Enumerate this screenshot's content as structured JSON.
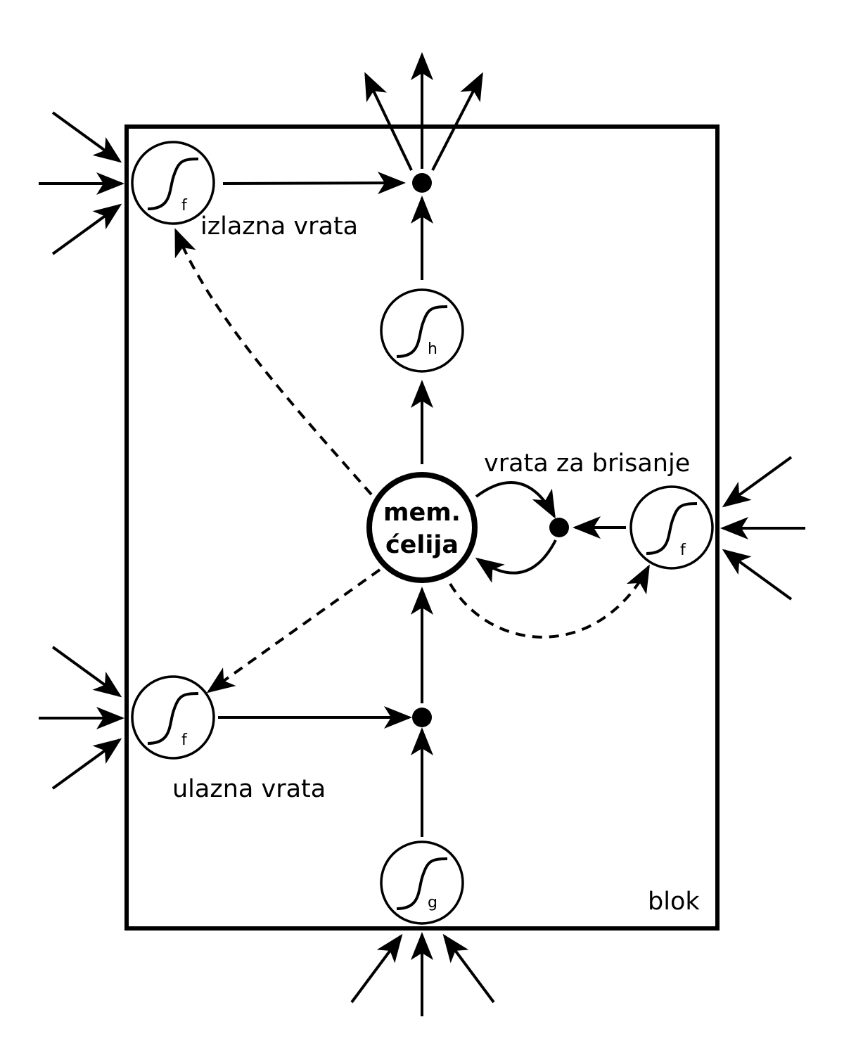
{
  "labels": {
    "output_gate": "izlazna vrata",
    "forget_gate": "vrata za brisanje",
    "input_gate": "ulazna vrata",
    "block": "blok",
    "cell_line1": "mem.",
    "cell_line2": "ćelija"
  },
  "units": {
    "output_gate_sub": "f",
    "h_unit_sub": "h",
    "forget_gate_sub": "f",
    "input_gate_sub": "f",
    "g_unit_sub": "g"
  }
}
